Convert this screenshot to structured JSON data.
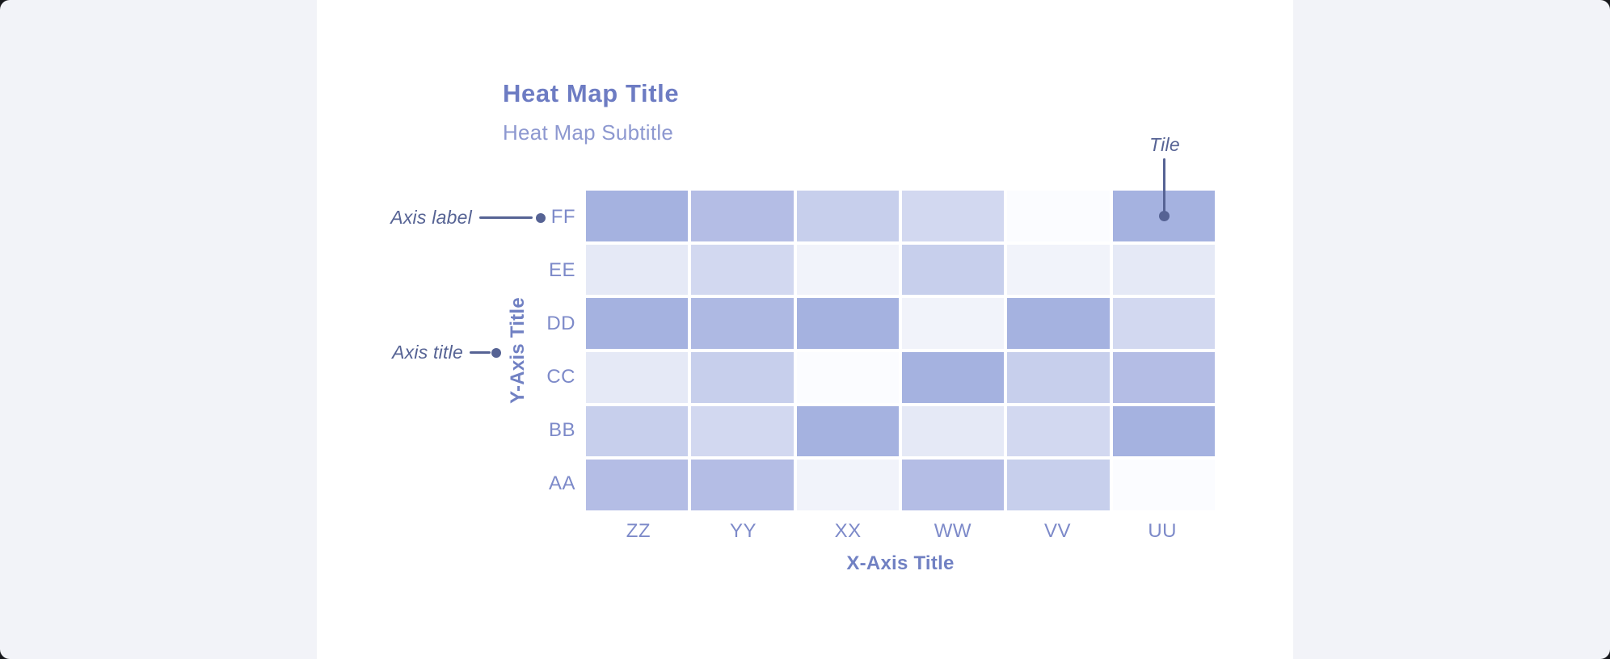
{
  "canvas": {
    "background_color": "#f2f3f8",
    "card_color": "#ffffff"
  },
  "header": {
    "title": "Heat Map Title",
    "subtitle": "Heat Map Subtitle",
    "title_color": "#6d7cc3",
    "subtitle_color": "#8d98d0"
  },
  "annotations": {
    "axis_label": "Axis label",
    "axis_title": "Axis title",
    "tile": "Tile",
    "color": "#566394"
  },
  "chart_data": {
    "type": "heatmap",
    "title": "Heat Map Title",
    "subtitle": "Heat Map Subtitle",
    "x_title": "X-Axis Title",
    "y_title": "Y-Axis Title",
    "columns": [
      "ZZ",
      "YY",
      "XX",
      "WW",
      "VV",
      "UU"
    ],
    "rows": [
      "FF",
      "EE",
      "DD",
      "CC",
      "BB",
      "AA"
    ],
    "palette": [
      "#fbfcff",
      "#f1f3fa",
      "#e5e9f6",
      "#d2d8f0",
      "#c7cfec",
      "#b4bde5",
      "#aeb9e3",
      "#a5b2e0"
    ],
    "palette_note": "index 0 = lowest intensity, 7 = highest intensity",
    "values": [
      [
        7,
        5,
        4,
        3,
        0,
        7
      ],
      [
        2,
        3,
        1,
        4,
        1,
        2
      ],
      [
        7,
        6,
        7,
        1,
        7,
        3
      ],
      [
        2,
        4,
        0,
        7,
        4,
        5
      ],
      [
        4,
        3,
        7,
        2,
        3,
        7
      ],
      [
        5,
        5,
        1,
        5,
        4,
        0
      ]
    ],
    "values_order": "rows top-to-bottom FF..AA, columns left-to-right ZZ..UU",
    "label_color": "#7d8ac9",
    "axis_title_color": "#7181c3",
    "grid": "off",
    "legend": "none"
  }
}
